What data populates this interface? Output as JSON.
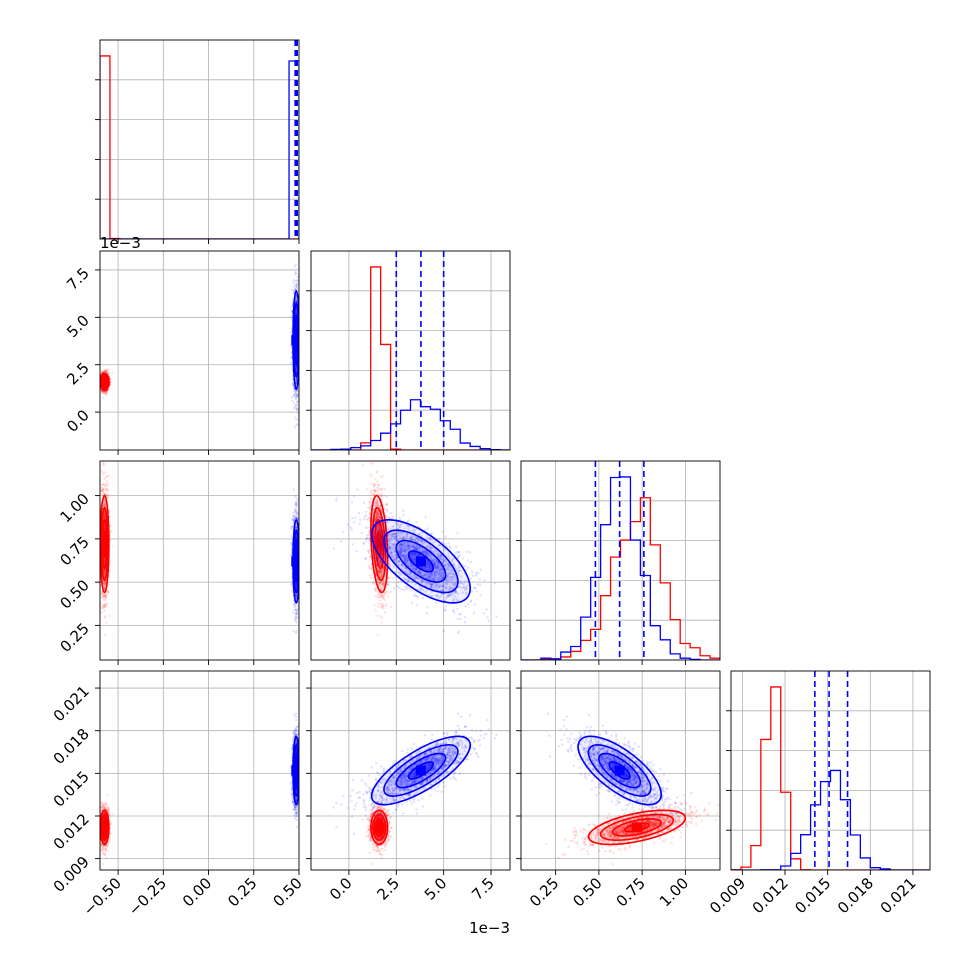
{
  "chart_data": {
    "type": "corner",
    "grid": true,
    "colors": {
      "series_a": "#ff0000",
      "series_b": "#0000ff"
    },
    "params": [
      {
        "range": [
          -0.6,
          0.5
        ],
        "ticks": [
          -0.5,
          -0.25,
          0.0,
          0.25,
          0.5
        ],
        "tick_labels": [
          "−0.50",
          "−0.25",
          "0.00",
          "0.25",
          "0.50"
        ],
        "offset": ""
      },
      {
        "range": [
          -0.002,
          0.0085
        ],
        "ticks": [
          0.0,
          0.0025,
          0.005,
          0.0075
        ],
        "tick_labels": [
          "0.0",
          "2.5",
          "5.0",
          "7.5"
        ],
        "offset": "1e−3"
      },
      {
        "range": [
          0.05,
          1.2
        ],
        "ticks": [
          0.25,
          0.5,
          0.75,
          1.0
        ],
        "tick_labels": [
          "0.25",
          "0.50",
          "0.75",
          "1.00"
        ],
        "offset": ""
      },
      {
        "range": [
          0.0082,
          0.0222
        ],
        "ticks": [
          0.009,
          0.012,
          0.015,
          0.018,
          0.021
        ],
        "tick_labels": [
          "0.009",
          "0.012",
          "0.015",
          "0.018",
          "0.021"
        ],
        "offset": ""
      }
    ],
    "series": [
      {
        "color": "#ff0000",
        "points": 1500,
        "mean": [
          -0.575,
          0.0016,
          0.72,
          0.0112
        ],
        "std": [
          0.012,
          0.00022,
          0.14,
          0.0006
        ],
        "corr": [
          [
            1,
            0,
            0,
            0
          ],
          [
            0,
            1,
            -0.3,
            0
          ],
          [
            0,
            -0.3,
            1,
            0.55
          ],
          [
            0,
            0,
            0.55,
            1
          ]
        ],
        "quantiles": null
      },
      {
        "color": "#0000ff",
        "points": 1500,
        "mean": [
          0.485,
          0.0038,
          0.62,
          0.0152
        ],
        "std": [
          0.009,
          0.0013,
          0.12,
          0.0012
        ],
        "corr": [
          [
            1,
            0,
            0,
            0
          ],
          [
            0,
            1,
            -0.65,
            0.75
          ],
          [
            0,
            -0.65,
            1,
            -0.7
          ],
          [
            0,
            0.75,
            -0.7,
            1
          ]
        ],
        "quantiles": [
          [
            0.479,
            0.484,
            0.49
          ],
          [
            0.0025,
            0.0038,
            0.005
          ],
          [
            0.48,
            0.62,
            0.76
          ],
          [
            0.0141,
            0.0151,
            0.0164
          ]
        ]
      }
    ]
  }
}
